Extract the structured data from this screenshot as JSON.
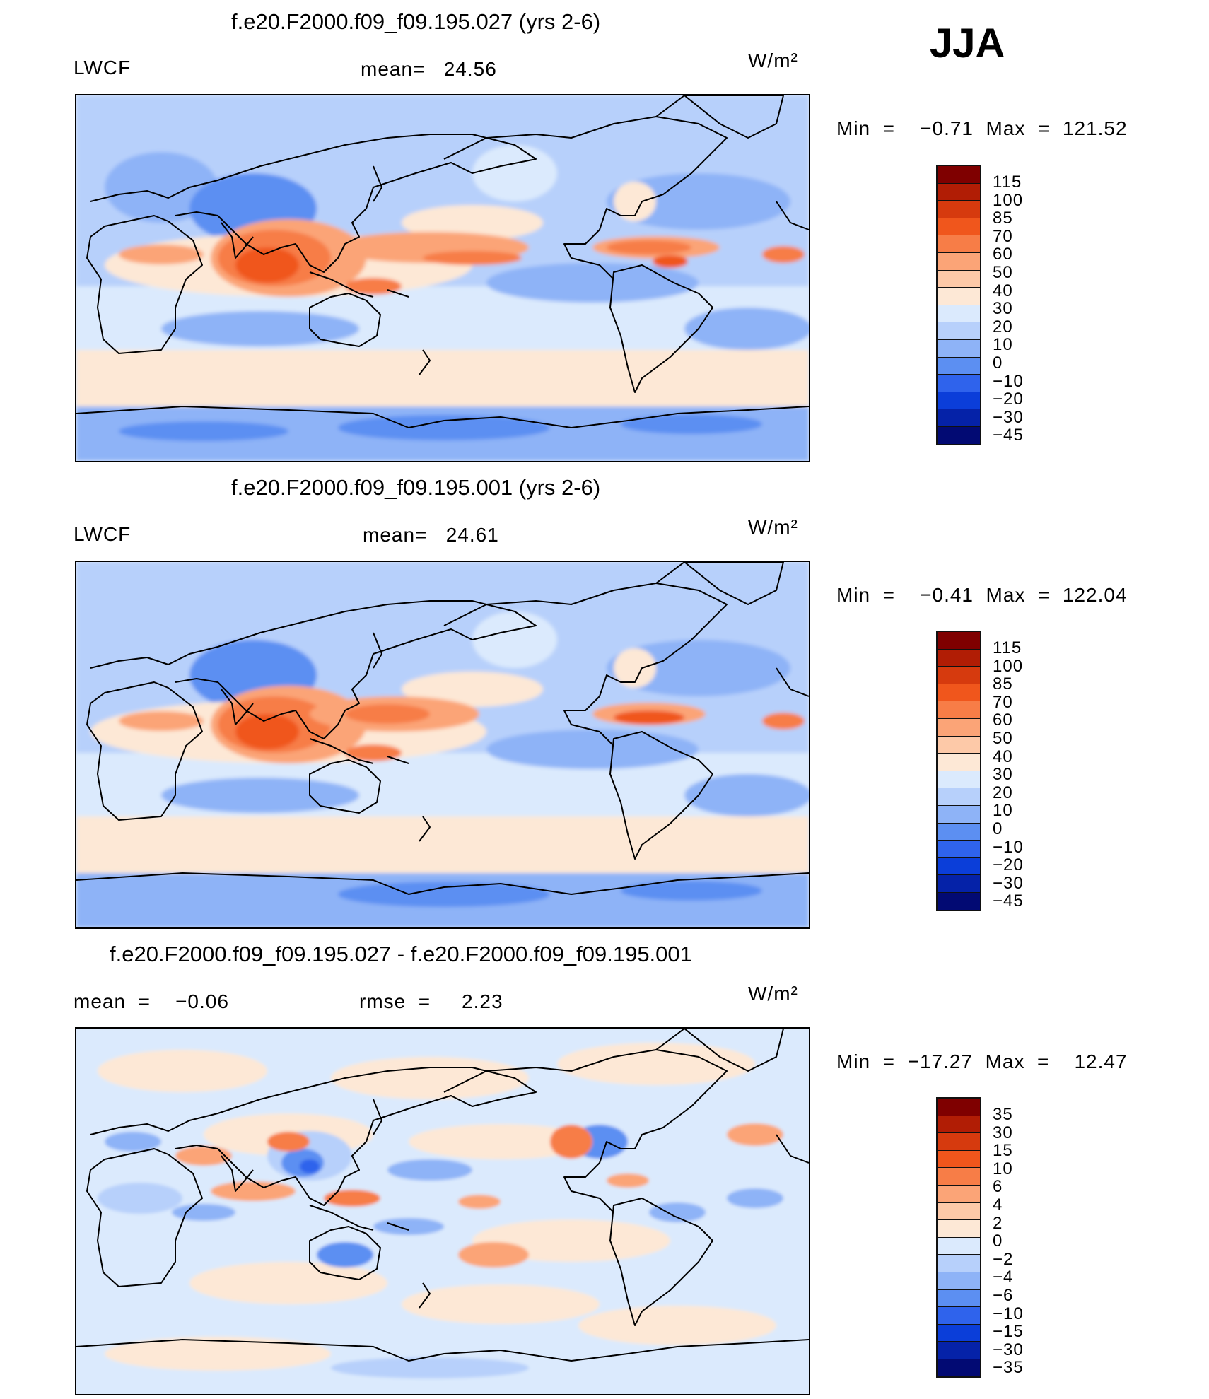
{
  "season": "JJA",
  "units": "W/m²",
  "panels": [
    {
      "title": "f.e20.F2000.f09_f09.195.027 (yrs 2-6)",
      "left_label": "LWCF",
      "center_label": "mean=   24.56",
      "minmax": "Min  =    −0.71  Max  =  121.52",
      "colorbar_labels": [
        "115",
        "100",
        "85",
        "70",
        "60",
        "50",
        "40",
        "30",
        "20",
        "10",
        "0",
        "−10",
        "−20",
        "−30",
        "−45"
      ]
    },
    {
      "title": "f.e20.F2000.f09_f09.195.001 (yrs 2-6)",
      "left_label": "LWCF",
      "center_label": "mean=   24.61",
      "minmax": "Min  =    −0.41  Max  =  122.04",
      "colorbar_labels": [
        "115",
        "100",
        "85",
        "70",
        "60",
        "50",
        "40",
        "30",
        "20",
        "10",
        "0",
        "−10",
        "−20",
        "−30",
        "−45"
      ]
    },
    {
      "title": "f.e20.F2000.f09_f09.195.027 - f.e20.F2000.f09_f09.195.001",
      "left_label": "mean  =    −0.06",
      "center_label": "rmse  =     2.23",
      "minmax": "Min  =  −17.27  Max  =    12.47",
      "colorbar_labels": [
        "35",
        "30",
        "15",
        "10",
        "6",
        "4",
        "2",
        "0",
        "−2",
        "−4",
        "−6",
        "−10",
        "−15",
        "−30",
        "−35"
      ]
    }
  ],
  "colors": {
    "colorbar": [
      "#7f0000",
      "#b11d05",
      "#d63a0e",
      "#f0561c",
      "#f77d47",
      "#fba477",
      "#fdc9a8",
      "#fde8d6",
      "#dbeafd",
      "#b7d0fb",
      "#8eb3f7",
      "#5c8ff2",
      "#2f63ec",
      "#0b3ed9",
      "#0522a8",
      "#020a73"
    ]
  }
}
